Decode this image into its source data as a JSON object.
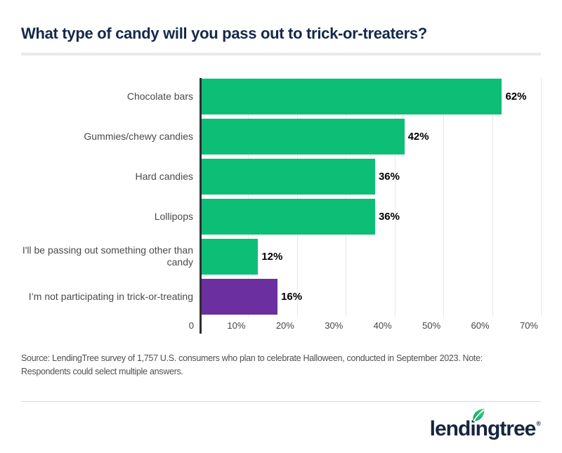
{
  "title": "What type of candy will you pass out to trick-or-treaters?",
  "chart_data": {
    "type": "bar",
    "orientation": "horizontal",
    "title": "What type of candy will you pass out to trick-or-treaters?",
    "categories": [
      "Chocolate bars",
      "Gummies/chewy candies",
      "Hard candies",
      "Lollipops",
      "I'll be passing out something other than candy",
      "I’m not participating in trick-or-treating"
    ],
    "values": [
      62,
      42,
      36,
      36,
      12,
      16
    ],
    "value_labels": [
      "62%",
      "42%",
      "36%",
      "36%",
      "12%",
      "16%"
    ],
    "bar_colors": [
      "#0cbe76",
      "#0cbe76",
      "#0cbe76",
      "#0cbe76",
      "#0cbe76",
      "#6b2f9f"
    ],
    "xlim": [
      0,
      70
    ],
    "x_tick_values": [
      0,
      10,
      20,
      30,
      40,
      50,
      60,
      70
    ],
    "x_ticks": [
      "0",
      "10%",
      "20%",
      "30%",
      "40%",
      "50%",
      "60%",
      "70%"
    ],
    "grid": true,
    "legend": "none",
    "colors": {
      "green": "#0cbe76",
      "purple": "#6b2f9f",
      "axis": "#2e2e2e",
      "gridline": "#e7e7e7"
    }
  },
  "source_note": "Source: LendingTree survey of 1,757 U.S. consumers who plan to celebrate Halloween, conducted in September 2023. Note: Respondents could select multiple answers.",
  "footer": {
    "logo_text": "lendingtree",
    "registered_mark": "®",
    "brand_navy": "#16263f",
    "leaf_green_dark": "#00a664",
    "leaf_green_light": "#3dd27e"
  }
}
